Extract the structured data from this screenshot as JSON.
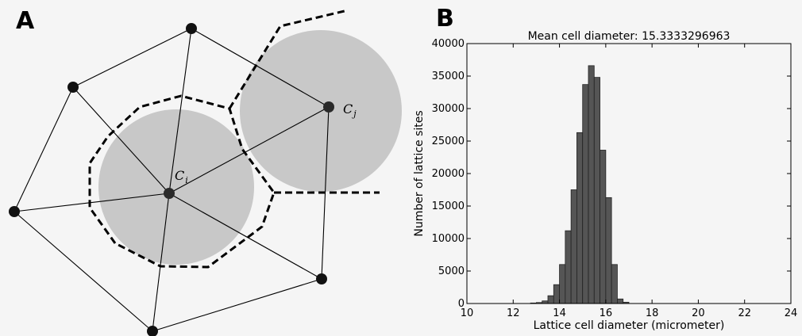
{
  "panel_a": {
    "letter": "A",
    "label_ci": {
      "base": "C",
      "sub": "i"
    },
    "label_cj": {
      "base": "C",
      "sub": "j"
    },
    "colors": {
      "cell_fill": "#c8c8c8",
      "node": "#111111",
      "edge": "#000000",
      "boundary": "#000000"
    }
  },
  "panel_b": {
    "letter": "B"
  },
  "chart_data": {
    "type": "bar",
    "title": "Mean cell diameter: 15.3333296963",
    "xlabel": "Lattice cell diameter (micrometer)",
    "ylabel": "Number of lattice sites",
    "xlim": [
      10,
      24
    ],
    "ylim": [
      0,
      40000
    ],
    "xticks": [
      10,
      12,
      14,
      16,
      18,
      20,
      22,
      24
    ],
    "yticks": [
      0,
      5000,
      10000,
      15000,
      20000,
      25000,
      30000,
      35000,
      40000
    ],
    "bin_width": 0.25,
    "bin_starts": [
      12.75,
      13.0,
      13.25,
      13.5,
      13.75,
      14.0,
      14.25,
      14.5,
      14.75,
      15.0,
      15.25,
      15.5,
      15.75,
      16.0,
      16.25,
      16.5,
      16.75
    ],
    "values": [
      80,
      150,
      400,
      1200,
      2900,
      6000,
      11200,
      17500,
      26300,
      33700,
      36600,
      34800,
      23600,
      16300,
      6000,
      700,
      200
    ],
    "bar_color": "#555555",
    "bar_edge_color": "#222222",
    "grid": false
  }
}
